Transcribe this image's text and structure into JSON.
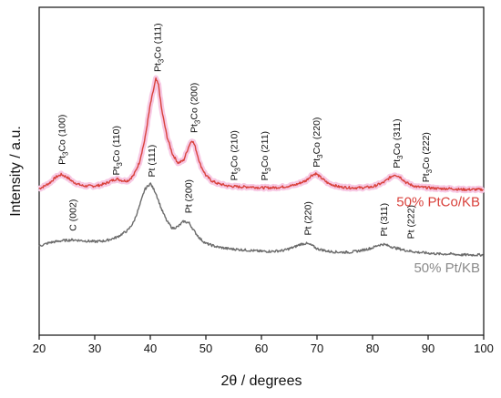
{
  "chart_data": {
    "type": "line",
    "xlabel": "2θ / degrees",
    "ylabel": "Intensity / a.u.",
    "xlim": [
      20,
      100
    ],
    "x_ticks": [
      20,
      30,
      40,
      50,
      60,
      70,
      80,
      90,
      100
    ],
    "y_ticks": [],
    "grid": false,
    "series": [
      {
        "name": "50% PtCo/KB",
        "color": "#d9423c",
        "halo_color": "#f7c9e4",
        "points": [
          [
            20,
            0.03
          ],
          [
            21,
            0.06
          ],
          [
            22,
            0.1
          ],
          [
            23,
            0.16
          ],
          [
            24,
            0.19
          ],
          [
            25,
            0.16
          ],
          [
            26,
            0.11
          ],
          [
            27,
            0.08
          ],
          [
            28,
            0.06
          ],
          [
            29,
            0.06
          ],
          [
            30,
            0.06
          ],
          [
            31,
            0.07
          ],
          [
            32,
            0.09
          ],
          [
            33,
            0.12
          ],
          [
            34,
            0.14
          ],
          [
            35,
            0.12
          ],
          [
            36,
            0.12
          ],
          [
            37,
            0.18
          ],
          [
            38,
            0.32
          ],
          [
            39,
            0.58
          ],
          [
            40,
            0.98
          ],
          [
            41,
            1.27
          ],
          [
            41.5,
            1.2
          ],
          [
            42,
            0.94
          ],
          [
            43,
            0.62
          ],
          [
            44,
            0.42
          ],
          [
            45,
            0.32
          ],
          [
            46,
            0.35
          ],
          [
            47,
            0.52
          ],
          [
            47.5,
            0.58
          ],
          [
            48,
            0.52
          ],
          [
            49,
            0.3
          ],
          [
            50,
            0.18
          ],
          [
            51,
            0.12
          ],
          [
            52,
            0.09
          ],
          [
            54,
            0.06
          ],
          [
            56,
            0.05
          ],
          [
            58,
            0.05
          ],
          [
            60,
            0.04
          ],
          [
            62,
            0.04
          ],
          [
            64,
            0.05
          ],
          [
            66,
            0.07
          ],
          [
            68,
            0.12
          ],
          [
            69,
            0.18
          ],
          [
            69.8,
            0.2
          ],
          [
            71,
            0.14
          ],
          [
            72,
            0.09
          ],
          [
            74,
            0.05
          ],
          [
            76,
            0.04
          ],
          [
            78,
            0.04
          ],
          [
            80,
            0.05
          ],
          [
            82,
            0.1
          ],
          [
            83,
            0.15
          ],
          [
            84,
            0.19
          ],
          [
            85,
            0.16
          ],
          [
            86,
            0.1
          ],
          [
            87,
            0.07
          ],
          [
            88,
            0.05
          ],
          [
            90,
            0.04
          ],
          [
            92,
            0.03
          ],
          [
            94,
            0.03
          ],
          [
            96,
            0.02
          ],
          [
            98,
            0.02
          ],
          [
            100,
            0.02
          ]
        ]
      },
      {
        "name": "50% Pt/KB",
        "color": "#6b6b6b",
        "halo_color": "",
        "points": [
          [
            20,
            -0.62
          ],
          [
            22,
            -0.58
          ],
          [
            24,
            -0.56
          ],
          [
            26,
            -0.55
          ],
          [
            28,
            -0.56
          ],
          [
            30,
            -0.57
          ],
          [
            32,
            -0.56
          ],
          [
            34,
            -0.52
          ],
          [
            36,
            -0.44
          ],
          [
            37,
            -0.35
          ],
          [
            38,
            -0.18
          ],
          [
            39,
            0.02
          ],
          [
            40,
            0.09
          ],
          [
            41,
            -0.02
          ],
          [
            42,
            -0.2
          ],
          [
            43,
            -0.34
          ],
          [
            44,
            -0.42
          ],
          [
            45,
            -0.4
          ],
          [
            46,
            -0.34
          ],
          [
            47,
            -0.36
          ],
          [
            48,
            -0.46
          ],
          [
            49,
            -0.54
          ],
          [
            50,
            -0.59
          ],
          [
            52,
            -0.63
          ],
          [
            54,
            -0.65
          ],
          [
            56,
            -0.66
          ],
          [
            58,
            -0.67
          ],
          [
            60,
            -0.68
          ],
          [
            62,
            -0.68
          ],
          [
            64,
            -0.67
          ],
          [
            66,
            -0.63
          ],
          [
            67,
            -0.6
          ],
          [
            68,
            -0.59
          ],
          [
            69,
            -0.61
          ],
          [
            70,
            -0.65
          ],
          [
            72,
            -0.68
          ],
          [
            74,
            -0.69
          ],
          [
            76,
            -0.69
          ],
          [
            78,
            -0.67
          ],
          [
            80,
            -0.64
          ],
          [
            81,
            -0.61
          ],
          [
            82,
            -0.6
          ],
          [
            83,
            -0.62
          ],
          [
            84,
            -0.64
          ],
          [
            86,
            -0.67
          ],
          [
            88,
            -0.69
          ],
          [
            90,
            -0.7
          ],
          [
            92,
            -0.71
          ],
          [
            94,
            -0.71
          ],
          [
            96,
            -0.72
          ],
          [
            98,
            -0.72
          ],
          [
            100,
            -0.72
          ]
        ]
      }
    ],
    "peak_labels": [
      {
        "sub": "3",
        "pre": "Pt",
        "post": "Co (100)",
        "x": 24.0,
        "y": 0.3
      },
      {
        "sub": "3",
        "pre": "Pt",
        "post": "Co (110)",
        "x": 33.8,
        "y": 0.18
      },
      {
        "sub": "3",
        "pre": "Pt",
        "post": "Co (111)",
        "x": 41.2,
        "y": 1.35
      },
      {
        "sub": "3",
        "pre": "Pt",
        "post": "Co (200)",
        "x": 47.8,
        "y": 0.66
      },
      {
        "sub": "3",
        "pre": "Pt",
        "post": "Co (210)",
        "x": 55.0,
        "y": 0.12
      },
      {
        "sub": "3",
        "pre": "Pt",
        "post": "Co (211)",
        "x": 60.5,
        "y": 0.12
      },
      {
        "sub": "3",
        "pre": "Pt",
        "post": "Co (220)",
        "x": 69.8,
        "y": 0.27
      },
      {
        "sub": "3",
        "pre": "Pt",
        "post": "Co (311)",
        "x": 84.3,
        "y": 0.26
      },
      {
        "sub": "3",
        "pre": "Pt",
        "post": "Co (222)",
        "x": 89.5,
        "y": 0.1
      },
      {
        "sub": "",
        "pre": "C (002)",
        "post": "",
        "x": 26.0,
        "y": -0.45
      },
      {
        "sub": "",
        "pre": "Pt (111)",
        "post": "",
        "x": 40.2,
        "y": 0.16
      },
      {
        "sub": "",
        "pre": "Pt (200)",
        "post": "",
        "x": 46.8,
        "y": -0.25
      },
      {
        "sub": "",
        "pre": "Pt (220)",
        "post": "",
        "x": 68.3,
        "y": -0.5
      },
      {
        "sub": "",
        "pre": "Pt (311)",
        "post": "",
        "x": 82.0,
        "y": -0.51
      },
      {
        "sub": "",
        "pre": "Pt (222)",
        "post": "",
        "x": 86.8,
        "y": -0.54
      }
    ],
    "legend": [
      {
        "text": "50% PtCo/KB",
        "color": "#d9423c",
        "y": -0.17
      },
      {
        "text": "50% Pt/KB",
        "color": "#8a8a8a",
        "y": -0.92
      }
    ]
  }
}
